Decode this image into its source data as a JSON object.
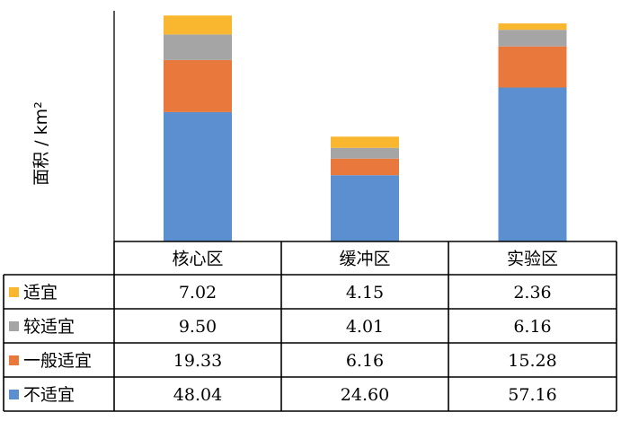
{
  "chart_data": {
    "type": "bar",
    "stacked": true,
    "ylabel": "面积 / km²",
    "categories": [
      "核心区",
      "缓冲区",
      "实验区"
    ],
    "series": [
      {
        "name": "不适宜",
        "color": "#5b8fcf",
        "values": [
          48.04,
          24.6,
          57.16
        ]
      },
      {
        "name": "一般适宜",
        "color": "#e8783c",
        "values": [
          19.33,
          6.16,
          15.28
        ]
      },
      {
        "name": "较适宜",
        "color": "#a5a5a5",
        "values": [
          9.5,
          4.01,
          6.16
        ]
      },
      {
        "name": "适宜",
        "color": "#f9b730",
        "values": [
          7.02,
          4.15,
          2.36
        ]
      }
    ],
    "table": {
      "rows": [
        {
          "label": "适宜",
          "color": "#f9b730",
          "values": [
            "7.02",
            "4.15",
            "2.36"
          ]
        },
        {
          "label": "较适宜",
          "color": "#a5a5a5",
          "values": [
            "9.50",
            "4.01",
            "6.16"
          ]
        },
        {
          "label": "一般适宜",
          "color": "#e8783c",
          "values": [
            "19.33",
            "6.16",
            "15.28"
          ]
        },
        {
          "label": "不适宜",
          "color": "#5b8fcf",
          "values": [
            "48.04",
            "24.60",
            "57.16"
          ]
        }
      ]
    }
  }
}
